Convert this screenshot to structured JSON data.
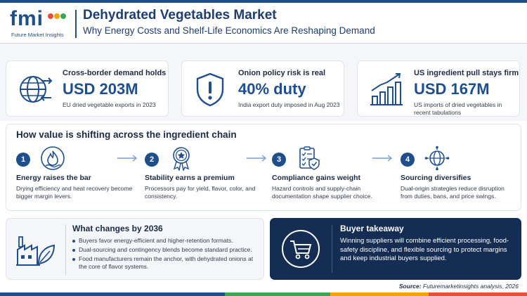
{
  "brand": {
    "logo_text": "fmi",
    "logo_subtitle": "Future Market Insights",
    "dot_colors": [
      "#e94f37",
      "#f4a300",
      "#3aa655",
      "#2f80c9"
    ]
  },
  "header": {
    "title": "Dehydrated Vegetables Market",
    "subtitle": "Why Energy Costs and Shelf-Life Economics Are Reshaping Demand"
  },
  "stats": [
    {
      "icon": "globe-arrows-icon",
      "label": "Cross-border demand holds",
      "value": "USD 203M",
      "note": "EU dried vegetable exports in 2023"
    },
    {
      "icon": "shield-alert-icon",
      "label": "Onion policy risk is real",
      "value": "40% duty",
      "note": "India export duty imposed in Aug 2023"
    },
    {
      "icon": "bar-chart-growth-icon",
      "label": "US ingredient pull stays firm",
      "value": "USD 167M",
      "note": "US imports of dried vegetables in recent tabulations"
    }
  ],
  "chain": {
    "title": "How value is shifting across the ingredient chain",
    "steps": [
      {
        "num": "1",
        "icon": "flame-icon",
        "heading": "Energy raises the bar",
        "text": "Drying efficiency and heat recovery become bigger margin levers."
      },
      {
        "num": "2",
        "icon": "award-star-icon",
        "heading": "Stability earns a premium",
        "text": "Processors pay for yield, flavor, color, and consistency."
      },
      {
        "num": "3",
        "icon": "checklist-icon",
        "heading": "Compliance gains weight",
        "text": "Hazard controls and supply-chain documentation shape supplier choice."
      },
      {
        "num": "4",
        "icon": "globe-network-icon",
        "heading": "Sourcing diversifies",
        "text": "Dual-origin strategies reduce disruption from duties, bans, and price swings."
      }
    ]
  },
  "changes": {
    "title": "What changes by 2036",
    "items": [
      "Buyers favor energy-efficient and higher-retention formats.",
      "Dual-sourcing and contingency blends become standard practice.",
      "Food manufacturers remain the anchor, with dehydrated onions at the core of flavor systems."
    ]
  },
  "takeaway": {
    "title": "Buyer takeaway",
    "text": "Winning suppliers will combine efficient processing, food-safety discipline, and flexible sourcing to protect margins and keep industrial buyers supplied."
  },
  "source": {
    "label": "Source:",
    "text": "Futuremarketinsights analysis, 2026"
  },
  "colors": {
    "accent": "#1f4e8c",
    "dark_panel": "#152d52",
    "bottom_bar": [
      "#1f4e8c",
      "#3aa655",
      "#f4a300",
      "#e94f37"
    ]
  }
}
